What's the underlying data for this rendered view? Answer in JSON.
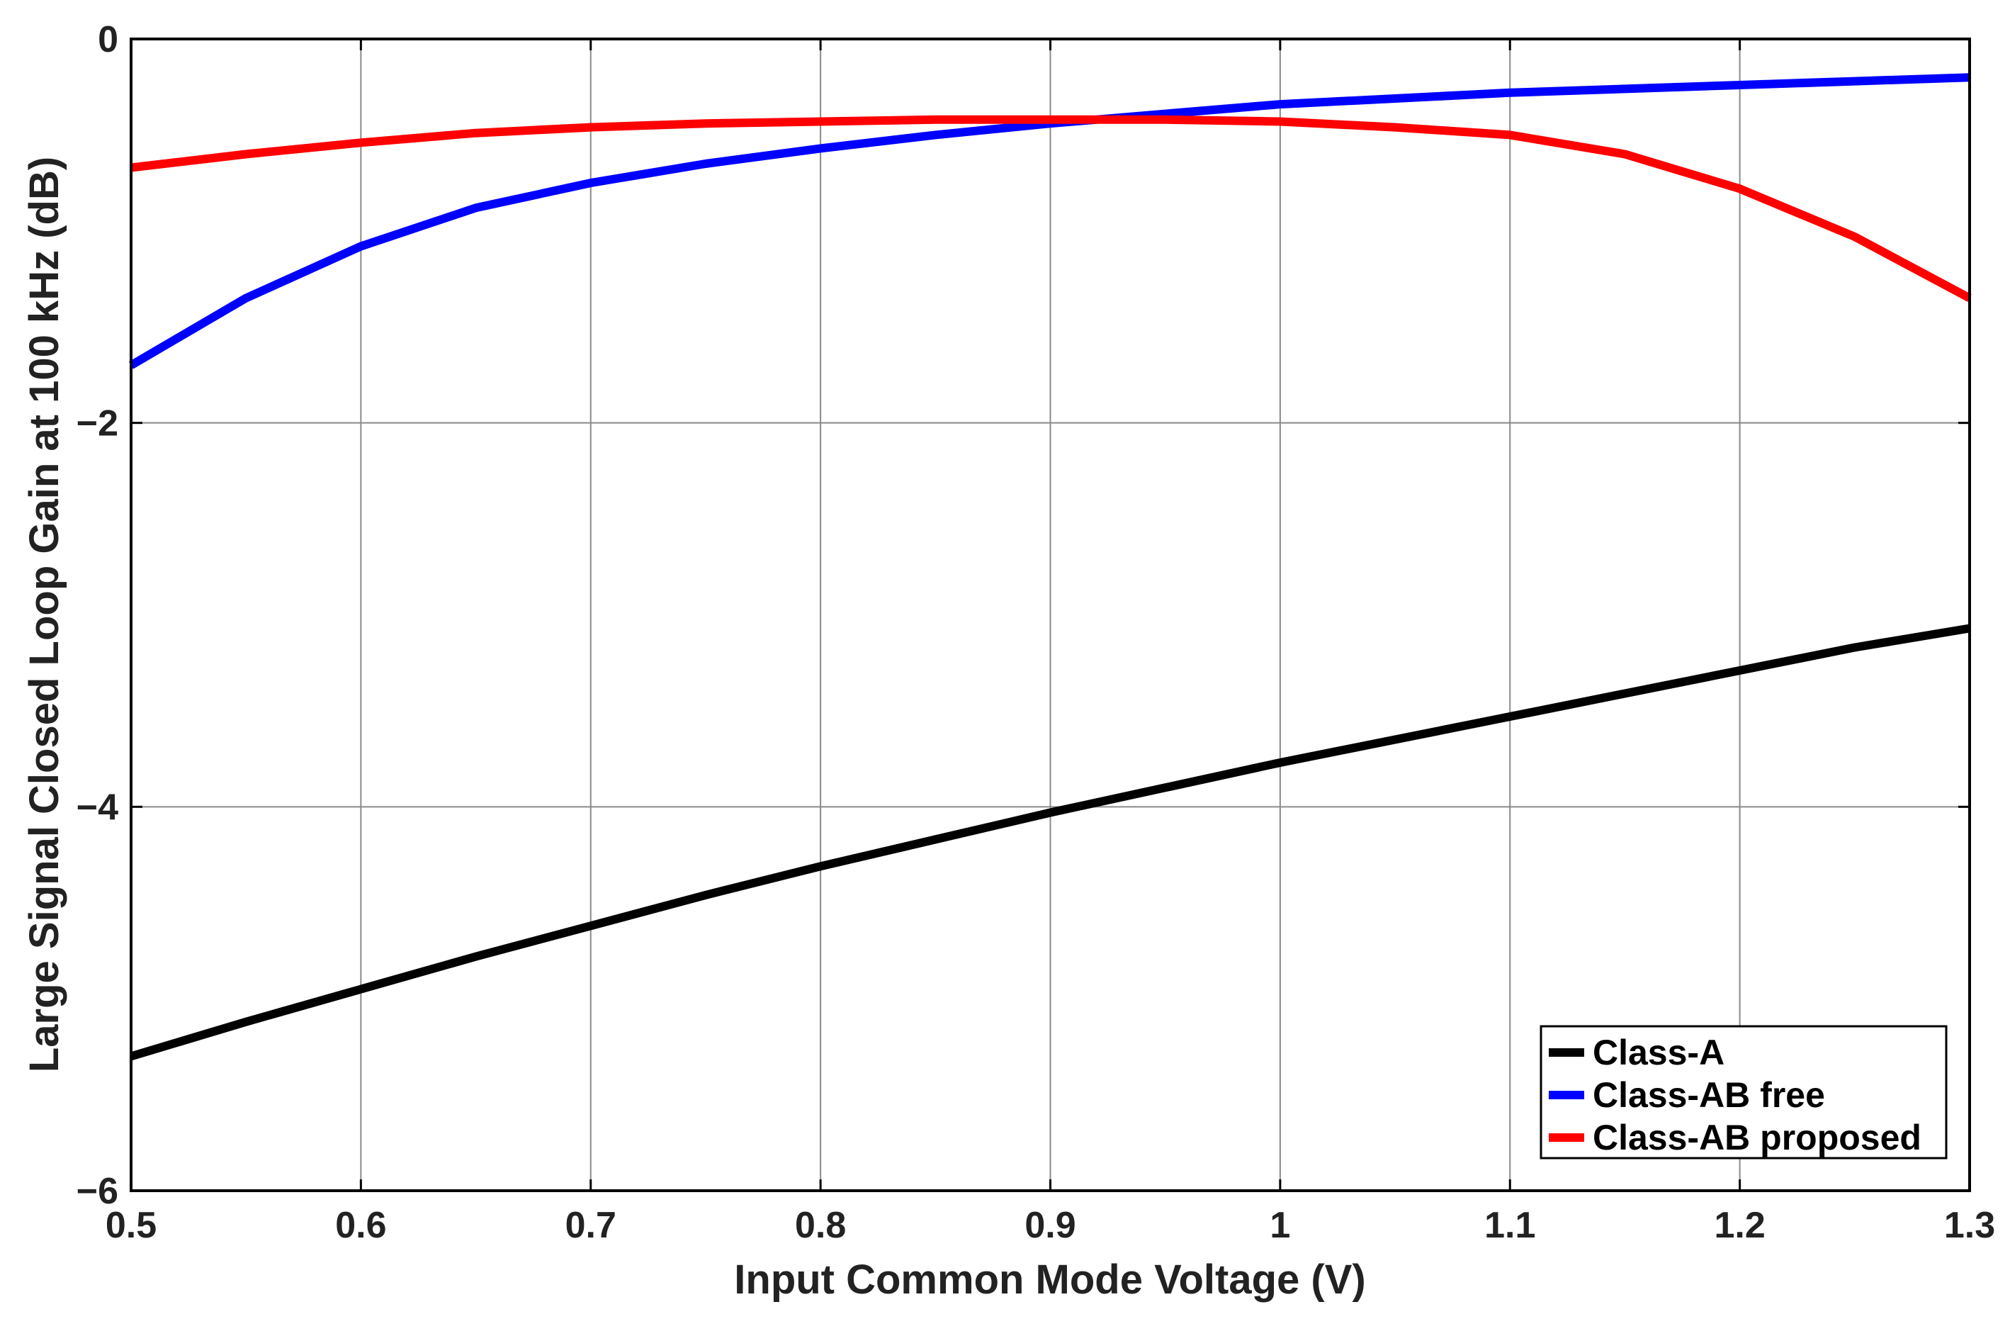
{
  "chart_data": {
    "type": "line",
    "title": "",
    "xlabel": "Input Common Mode Voltage (V)",
    "ylabel": "Large Signal Closed Loop Gain at 100 kHz (dB)",
    "xlim": [
      0.5,
      1.3
    ],
    "ylim": [
      -6,
      0
    ],
    "x_ticks": [
      "0.5",
      "0.6",
      "0.7",
      "0.8",
      "0.9",
      "1",
      "1.1",
      "1.2",
      "1.3"
    ],
    "y_ticks": [
      "0",
      "−2",
      "−4",
      "−6"
    ],
    "x_tick_values": [
      0.5,
      0.6,
      0.7,
      0.8,
      0.9,
      1.0,
      1.1,
      1.2,
      1.3
    ],
    "y_tick_values": [
      0,
      -2,
      -4,
      -6
    ],
    "grid": true,
    "legend_position": "bottom-right",
    "x": [
      0.5,
      0.55,
      0.6,
      0.65,
      0.7,
      0.75,
      0.8,
      0.85,
      0.9,
      0.95,
      1.0,
      1.05,
      1.1,
      1.15,
      1.2,
      1.25,
      1.3
    ],
    "series": [
      {
        "name": "Class-A",
        "color": "#000000",
        "values": [
          -5.3,
          -5.12,
          -4.95,
          -4.78,
          -4.62,
          -4.46,
          -4.31,
          -4.17,
          -4.03,
          -3.9,
          -3.77,
          -3.65,
          -3.53,
          -3.41,
          -3.29,
          -3.17,
          -3.07
        ]
      },
      {
        "name": "Class-AB free",
        "color": "#0000ff",
        "values": [
          -1.7,
          -1.35,
          -1.08,
          -0.88,
          -0.75,
          -0.65,
          -0.57,
          -0.5,
          -0.44,
          -0.39,
          -0.34,
          -0.31,
          -0.28,
          -0.26,
          -0.24,
          -0.22,
          -0.2
        ]
      },
      {
        "name": "Class-AB proposed",
        "color": "#ff0000",
        "values": [
          -0.67,
          -0.6,
          -0.54,
          -0.49,
          -0.46,
          -0.44,
          -0.43,
          -0.42,
          -0.42,
          -0.42,
          -0.43,
          -0.46,
          -0.5,
          -0.6,
          -0.78,
          -1.03,
          -1.35
        ]
      }
    ]
  }
}
